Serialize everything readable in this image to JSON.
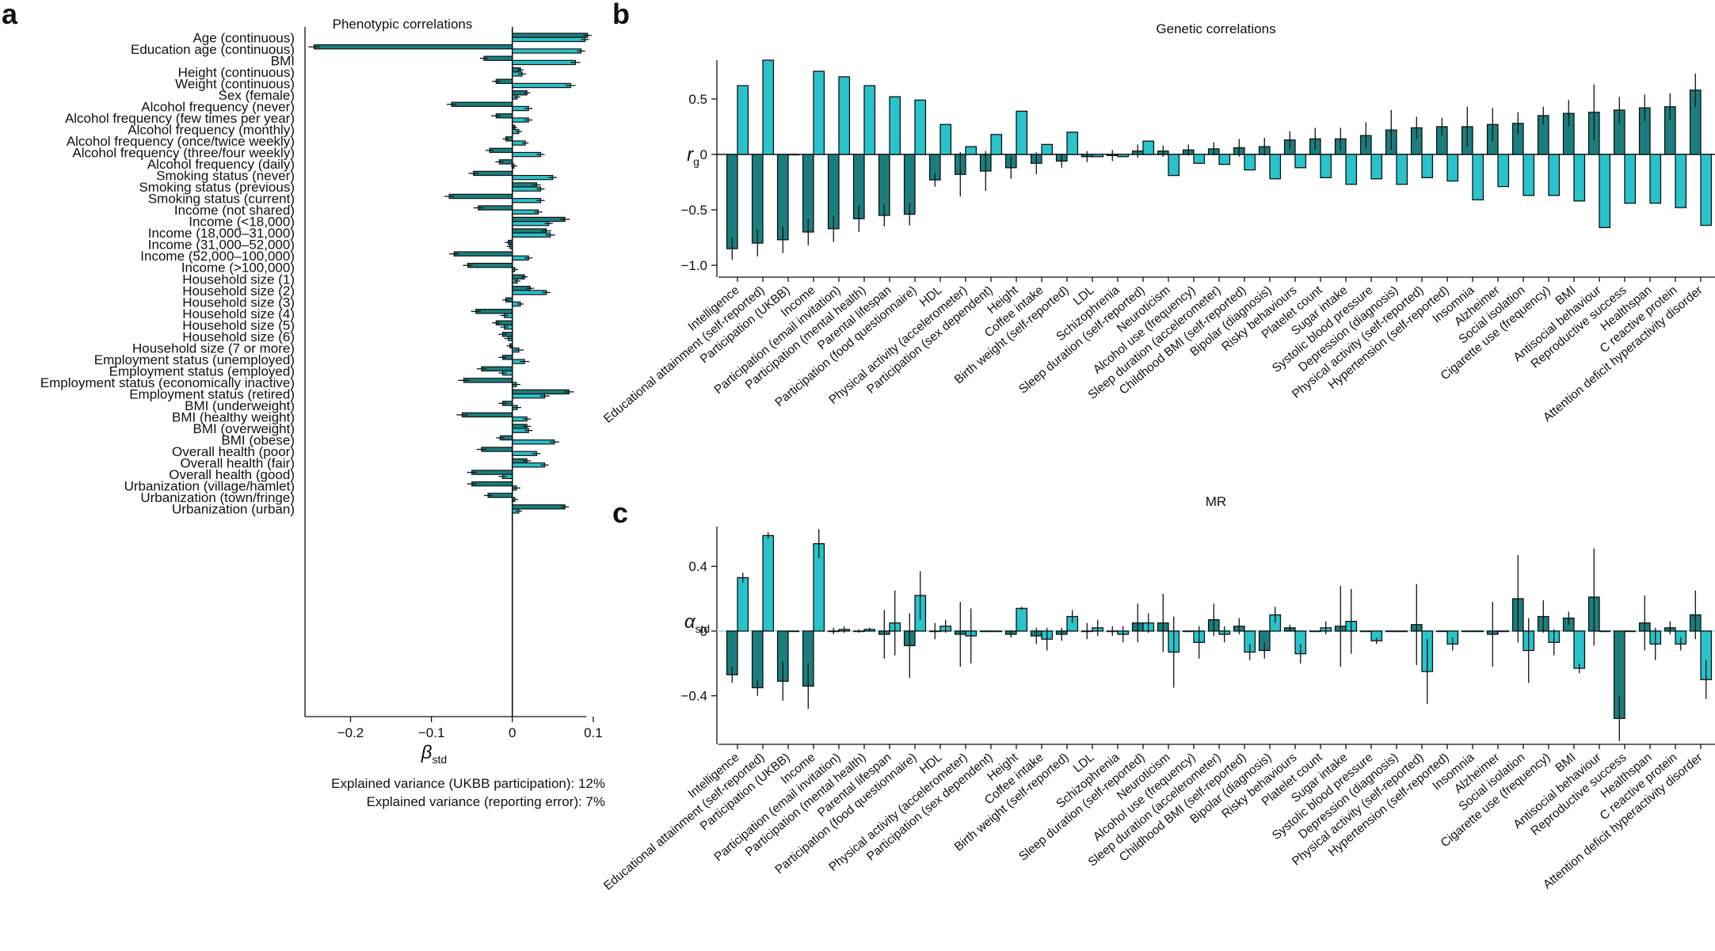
{
  "colors": {
    "dark": "#1a7e7e",
    "light": "#29c3cb",
    "outline": "#111111",
    "zero_line_mr": "#9adfe2"
  },
  "panels": {
    "a": {
      "letter": "a",
      "title": "Phenotypic correlations"
    },
    "b": {
      "letter": "b",
      "title": "Genetic correlations"
    },
    "c": {
      "letter": "c",
      "title": "MR"
    }
  },
  "notes": {
    "line1": "Explained variance (UKBB participation): 12%",
    "line2": "Explained variance (reporting error): 7%"
  },
  "chart_data": [
    {
      "panel": "a",
      "type": "bar",
      "orientation": "horizontal",
      "title": "Phenotypic correlations",
      "xlabel_symbol": "β",
      "xlabel_sub": "std",
      "xlim": [
        -0.27,
        0.105
      ],
      "xticks": [
        -0.2,
        -0.1,
        0,
        0.1
      ],
      "xtick_labels": [
        "−0.2",
        "−0.1",
        "0",
        "0.1"
      ],
      "categories": [
        "Age (continuous)",
        "Education age (continuous)",
        "BMI",
        "Height (continuous)",
        "Weight (continuous)",
        "Sex (female)",
        "Alcohol frequency (never)",
        "Alcohol frequency (few times per year)",
        "Alcohol frequency (monthly)",
        "Alcohol frequency (once/twice weekly)",
        "Alcohol frequency (three/four weekly)",
        "Alcohol frequency (daily)",
        "Smoking status (never)",
        "Smoking status (previous)",
        "Smoking status (current)",
        "Income (not shared)",
        "Income (<18,000)",
        "Income (18,000–31,000)",
        "Income (31,000–52,000)",
        "Income (52,000–100,000)",
        "Income (>100,000)",
        "Household size (1)",
        "Household size (2)",
        "Household size (3)",
        "Household size (4)",
        "Household size (5)",
        "Household size (6)",
        "Household size (7 or more)",
        "Employment status (unemployed)",
        "Employment status (employed)",
        "Employment status (economically inactive)",
        "Employment status (retired)",
        "BMI (underweight)",
        "BMI (healthy weight)",
        "BMI (overweight)",
        "BMI (obese)",
        "Overall health (poor)",
        "Overall health (fair)",
        "Overall health (good)",
        "Urbanization (village/hamlet)",
        "Urbanization (town/fringe)",
        "Urbanization (urban)"
      ],
      "series": [
        {
          "name": "UKBB participation",
          "color": "dark",
          "values": [
            0.093,
            -0.245,
            -0.035,
            0.01,
            -0.02,
            0.018,
            -0.075,
            -0.02,
            0.003,
            -0.008,
            -0.028,
            -0.016,
            -0.048,
            0.03,
            -0.078,
            -0.042,
            0.065,
            0.042,
            -0.005,
            -0.072,
            -0.055,
            0.015,
            0.022,
            -0.008,
            -0.045,
            -0.02,
            -0.012,
            -0.003,
            -0.012,
            -0.038,
            -0.06,
            0.07,
            -0.012,
            -0.062,
            0.018,
            -0.015,
            -0.038,
            0.018,
            -0.05,
            -0.05,
            -0.03,
            0.065
          ],
          "errors": [
            0.005,
            0.007,
            0.005,
            0.004,
            0.005,
            0.004,
            0.006,
            0.006,
            0.003,
            0.004,
            0.005,
            0.005,
            0.006,
            0.005,
            0.006,
            0.006,
            0.006,
            0.006,
            0.004,
            0.006,
            0.006,
            0.004,
            0.005,
            0.004,
            0.006,
            0.005,
            0.005,
            0.004,
            0.005,
            0.006,
            0.007,
            0.006,
            0.005,
            0.007,
            0.005,
            0.005,
            0.006,
            0.005,
            0.006,
            0.006,
            0.005,
            0.005
          ]
        },
        {
          "name": "Reporting error",
          "color": "light",
          "values": [
            0.09,
            0.085,
            0.078,
            0.012,
            0.072,
            0.006,
            0.02,
            0.02,
            0.008,
            0.016,
            0.035,
            0.002,
            0.05,
            0.035,
            0.035,
            0.032,
            0.045,
            0.047,
            -0.003,
            0.02,
            0.003,
            0.006,
            0.042,
            0.01,
            -0.01,
            -0.01,
            -0.005,
            0.008,
            0.015,
            -0.012,
            0.005,
            0.04,
            0.006,
            0.018,
            0.02,
            0.052,
            0.03,
            0.04,
            -0.012,
            0.005,
            0.003,
            0.008
          ],
          "errors": [
            0.005,
            0.005,
            0.006,
            0.005,
            0.006,
            0.004,
            0.005,
            0.005,
            0.004,
            0.004,
            0.005,
            0.004,
            0.005,
            0.005,
            0.005,
            0.005,
            0.005,
            0.006,
            0.004,
            0.005,
            0.004,
            0.004,
            0.005,
            0.004,
            0.005,
            0.005,
            0.005,
            0.006,
            0.006,
            0.005,
            0.005,
            0.006,
            0.005,
            0.005,
            0.005,
            0.006,
            0.005,
            0.005,
            0.005,
            0.005,
            0.004,
            0.004
          ]
        }
      ]
    },
    {
      "panel": "b",
      "type": "bar",
      "title": "Genetic correlations",
      "ylabel_symbol": "r",
      "ylabel_sub": "g",
      "ylim": [
        -1.05,
        0.85
      ],
      "yticks": [
        0.5,
        0,
        -0.5,
        -1.0
      ],
      "ytick_labels": [
        "0.5",
        "0",
        "−0.5",
        "−1.0"
      ],
      "categories": [
        "Intelligence",
        "Educational attainment (self-reported)",
        "Participation (UKBB)",
        "Income",
        "Participation (email invitation)",
        "Participation (mental health)",
        "Parental lifespan",
        "Participation (food questionnaire)",
        "HDL",
        "Physical activity (accelerometer)",
        "Participation (sex dependent)",
        "Height",
        "Coffee intake",
        "Birth weight (self-reported)",
        "LDL",
        "Schizophrenia",
        "Sleep duration (self-reported)",
        "Neuroticism",
        "Alcohol use (frequency)",
        "Sleep duration (accelerometer)",
        "Childhood BMI (self-reported)",
        "Bipolar (diagnosis)",
        "Risky behaviours",
        "Platelet count",
        "Sugar intake",
        "Systolic blood pressure",
        "Depression (diagnosis)",
        "Physical activity (self-reported)",
        "Hypertension (self-reported)",
        "Insomnia",
        "Alzheimer",
        "Social isolation",
        "Cigarette use (frequency)",
        "BMI",
        "Antisocial behaviour",
        "Reproductive success",
        "Healthspan",
        "C reactive protein",
        "Attention deficit hyperactivity disorder"
      ],
      "series": [
        {
          "name": "UKBB participation",
          "color": "dark",
          "values": [
            -0.85,
            -0.8,
            -0.77,
            -0.7,
            -0.67,
            -0.58,
            -0.55,
            -0.54,
            -0.23,
            -0.18,
            -0.15,
            -0.12,
            -0.08,
            -0.06,
            -0.02,
            -0.01,
            0.03,
            0.03,
            0.04,
            0.05,
            0.06,
            0.07,
            0.13,
            0.14,
            0.14,
            0.17,
            0.22,
            0.24,
            0.25,
            0.25,
            0.27,
            0.28,
            0.35,
            0.37,
            0.38,
            0.4,
            0.42,
            0.43,
            0.58
          ],
          "errors": [
            0.1,
            0.12,
            0.12,
            0.12,
            0.12,
            0.12,
            0.1,
            0.1,
            0.06,
            0.2,
            0.18,
            0.1,
            0.1,
            0.06,
            0.05,
            0.05,
            0.06,
            0.05,
            0.05,
            0.06,
            0.08,
            0.08,
            0.08,
            0.1,
            0.1,
            0.12,
            0.18,
            0.1,
            0.08,
            0.18,
            0.15,
            0.1,
            0.08,
            0.12,
            0.25,
            0.12,
            0.12,
            0.12,
            0.15
          ]
        },
        {
          "name": "Reporting error",
          "color": "light",
          "values": [
            0.62,
            0.85,
            0.0,
            0.75,
            0.7,
            0.62,
            0.52,
            0.49,
            0.27,
            0.07,
            0.18,
            0.39,
            0.09,
            0.2,
            -0.02,
            -0.02,
            0.12,
            -0.19,
            -0.08,
            -0.09,
            -0.14,
            -0.22,
            -0.12,
            -0.21,
            -0.27,
            -0.22,
            -0.27,
            -0.21,
            -0.24,
            -0.41,
            -0.29,
            -0.37,
            -0.37,
            -0.42,
            -0.66,
            -0.44,
            -0.44,
            -0.48,
            -0.64
          ]
        }
      ]
    },
    {
      "panel": "c",
      "type": "bar",
      "title": "MR",
      "ylabel_symbol": "α",
      "ylabel_sub": "std",
      "ylim": [
        -0.7,
        0.68
      ],
      "yticks": [
        0.4,
        0,
        -0.4
      ],
      "ytick_labels": [
        "0.4",
        "0",
        "−0.4"
      ],
      "categories": [
        "Intelligence",
        "Educational attainment (self-reported)",
        "Participation (UKBB)",
        "Income",
        "Participation (email invitation)",
        "Participation (mental health)",
        "Parental lifespan",
        "Participation (food questionnaire)",
        "HDL",
        "Physical activity (accelerometer)",
        "Participation (sex dependent)",
        "Height",
        "Coffee intake",
        "Birth weight (self-reported)",
        "LDL",
        "Schizophrenia",
        "Sleep duration (self-reported)",
        "Neuroticism",
        "Alcohol use (frequency)",
        "Sleep duration (accelerometer)",
        "Childhood BMI (self-reported)",
        "Bipolar (diagnosis)",
        "Risky behaviours",
        "Platelet count",
        "Sugar intake",
        "Systolic blood pressure",
        "Depression (diagnosis)",
        "Physical activity (self-reported)",
        "Hypertension (self-reported)",
        "Insomnia",
        "Alzheimer",
        "Social isolation",
        "Cigarette use (frequency)",
        "BMI",
        "Antisocial behaviour",
        "Reproductive success",
        "Healthspan",
        "C reactive protein",
        "Attention deficit hyperactivity disorder"
      ],
      "series": [
        {
          "name": "UKBB participation",
          "color": "dark",
          "values": [
            -0.27,
            -0.35,
            -0.31,
            -0.34,
            0.0,
            0.0,
            -0.02,
            -0.09,
            0.0,
            -0.02,
            0.0,
            -0.02,
            -0.03,
            -0.02,
            0.0,
            0.0,
            0.05,
            0.05,
            0.0,
            0.07,
            0.03,
            -0.12,
            0.02,
            0.0,
            0.03,
            0.0,
            0.0,
            0.04,
            0.0,
            0.0,
            -0.02,
            0.2,
            0.09,
            0.08,
            0.21,
            -0.54,
            0.05,
            0.02,
            0.1
          ],
          "errors": [
            0.05,
            0.05,
            0.12,
            0.14,
            0.02,
            0.01,
            0.15,
            0.2,
            0.05,
            0.2,
            0.0,
            0.02,
            0.05,
            0.04,
            0.05,
            0.03,
            0.12,
            0.18,
            0.0,
            0.1,
            0.05,
            0.05,
            0.02,
            0.0,
            0.25,
            0.0,
            0.0,
            0.25,
            0.0,
            0.0,
            0.2,
            0.27,
            0.1,
            0.04,
            0.3,
            0.14,
            0.17,
            0.04,
            0.15
          ]
        },
        {
          "name": "Reporting error",
          "color": "light",
          "values": [
            0.33,
            0.59,
            0.0,
            0.54,
            0.01,
            0.01,
            0.05,
            0.22,
            0.03,
            -0.03,
            0.0,
            0.14,
            -0.05,
            0.09,
            0.02,
            -0.02,
            0.05,
            -0.13,
            -0.07,
            -0.02,
            -0.13,
            0.1,
            -0.14,
            0.02,
            0.06,
            -0.06,
            0.0,
            -0.25,
            -0.08,
            0.0,
            0.0,
            -0.12,
            -0.07,
            -0.23,
            0.0,
            0.0,
            -0.08,
            -0.08,
            -0.3
          ],
          "errors": [
            0.03,
            0.02,
            0.0,
            0.09,
            0.02,
            0.01,
            0.2,
            0.15,
            0.04,
            0.17,
            0.0,
            0.01,
            0.07,
            0.04,
            0.05,
            0.05,
            0.06,
            0.22,
            0.1,
            0.05,
            0.05,
            0.05,
            0.06,
            0.04,
            0.2,
            0.02,
            0.0,
            0.2,
            0.04,
            0.0,
            0.0,
            0.2,
            0.08,
            0.03,
            0.0,
            0.0,
            0.1,
            0.04,
            0.12
          ]
        }
      ]
    }
  ]
}
